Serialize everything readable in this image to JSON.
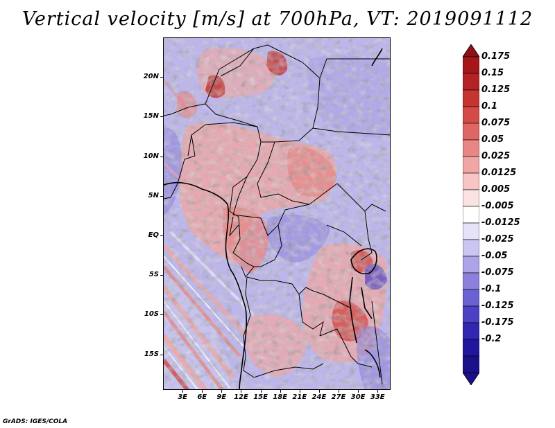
{
  "title": "Vertical velocity [m/s] at 700hPa, VT: 2019091112",
  "footer": "GrADS: IGES/COLA",
  "map": {
    "variable": "Vertical velocity",
    "units": "m/s",
    "level": "700hPa",
    "valid_time": "2019091112",
    "lon_range": [
      0,
      35
    ],
    "lat_range": [
      -19.5,
      25
    ],
    "y_labels": [
      {
        "lat": 20,
        "label": "20N"
      },
      {
        "lat": 15,
        "label": "15N"
      },
      {
        "lat": 10,
        "label": "10N"
      },
      {
        "lat": 5,
        "label": "5N"
      },
      {
        "lat": 0,
        "label": "EQ"
      },
      {
        "lat": -5,
        "label": "5S"
      },
      {
        "lat": -10,
        "label": "10S"
      },
      {
        "lat": -15,
        "label": "15S"
      }
    ],
    "x_labels": [
      {
        "lon": 3,
        "label": "3E"
      },
      {
        "lon": 6,
        "label": "6E"
      },
      {
        "lon": 9,
        "label": "9E"
      },
      {
        "lon": 12,
        "label": "12E"
      },
      {
        "lon": 15,
        "label": "15E"
      },
      {
        "lon": 18,
        "label": "18E"
      },
      {
        "lon": 21,
        "label": "21E"
      },
      {
        "lon": 24,
        "label": "24E"
      },
      {
        "lon": 27,
        "label": "27E"
      },
      {
        "lon": 30,
        "label": "30E"
      },
      {
        "lon": 33,
        "label": "33E"
      }
    ]
  },
  "colorbar": {
    "levels": [
      {
        "label": "0.175",
        "color": "#a5161b"
      },
      {
        "label": "0.15",
        "color": "#b42225"
      },
      {
        "label": "0.125",
        "color": "#c63432"
      },
      {
        "label": "0.1",
        "color": "#d44a47"
      },
      {
        "label": "0.075",
        "color": "#df6664"
      },
      {
        "label": "0.05",
        "color": "#e88684"
      },
      {
        "label": "0.025",
        "color": "#f0a6a5"
      },
      {
        "label": "0.0125",
        "color": "#f6c5c4"
      },
      {
        "label": "0.005",
        "color": "#fbe3e3"
      },
      {
        "label": "-0.005",
        "color": "#ffffff"
      },
      {
        "label": "-0.0125",
        "color": "#e6e2f8"
      },
      {
        "label": "-0.025",
        "color": "#cbc5f1"
      },
      {
        "label": "-0.05",
        "color": "#aca4e8"
      },
      {
        "label": "-0.075",
        "color": "#8b81dd"
      },
      {
        "label": "-0.1",
        "color": "#6b61d2"
      },
      {
        "label": "-0.125",
        "color": "#4c40c5"
      },
      {
        "label": "-0.175",
        "color": "#3326b2"
      },
      {
        "label": "-0.2",
        "color": "#21169d"
      }
    ],
    "over_color": "#8f1016",
    "under_color": "#1c0f8a"
  }
}
